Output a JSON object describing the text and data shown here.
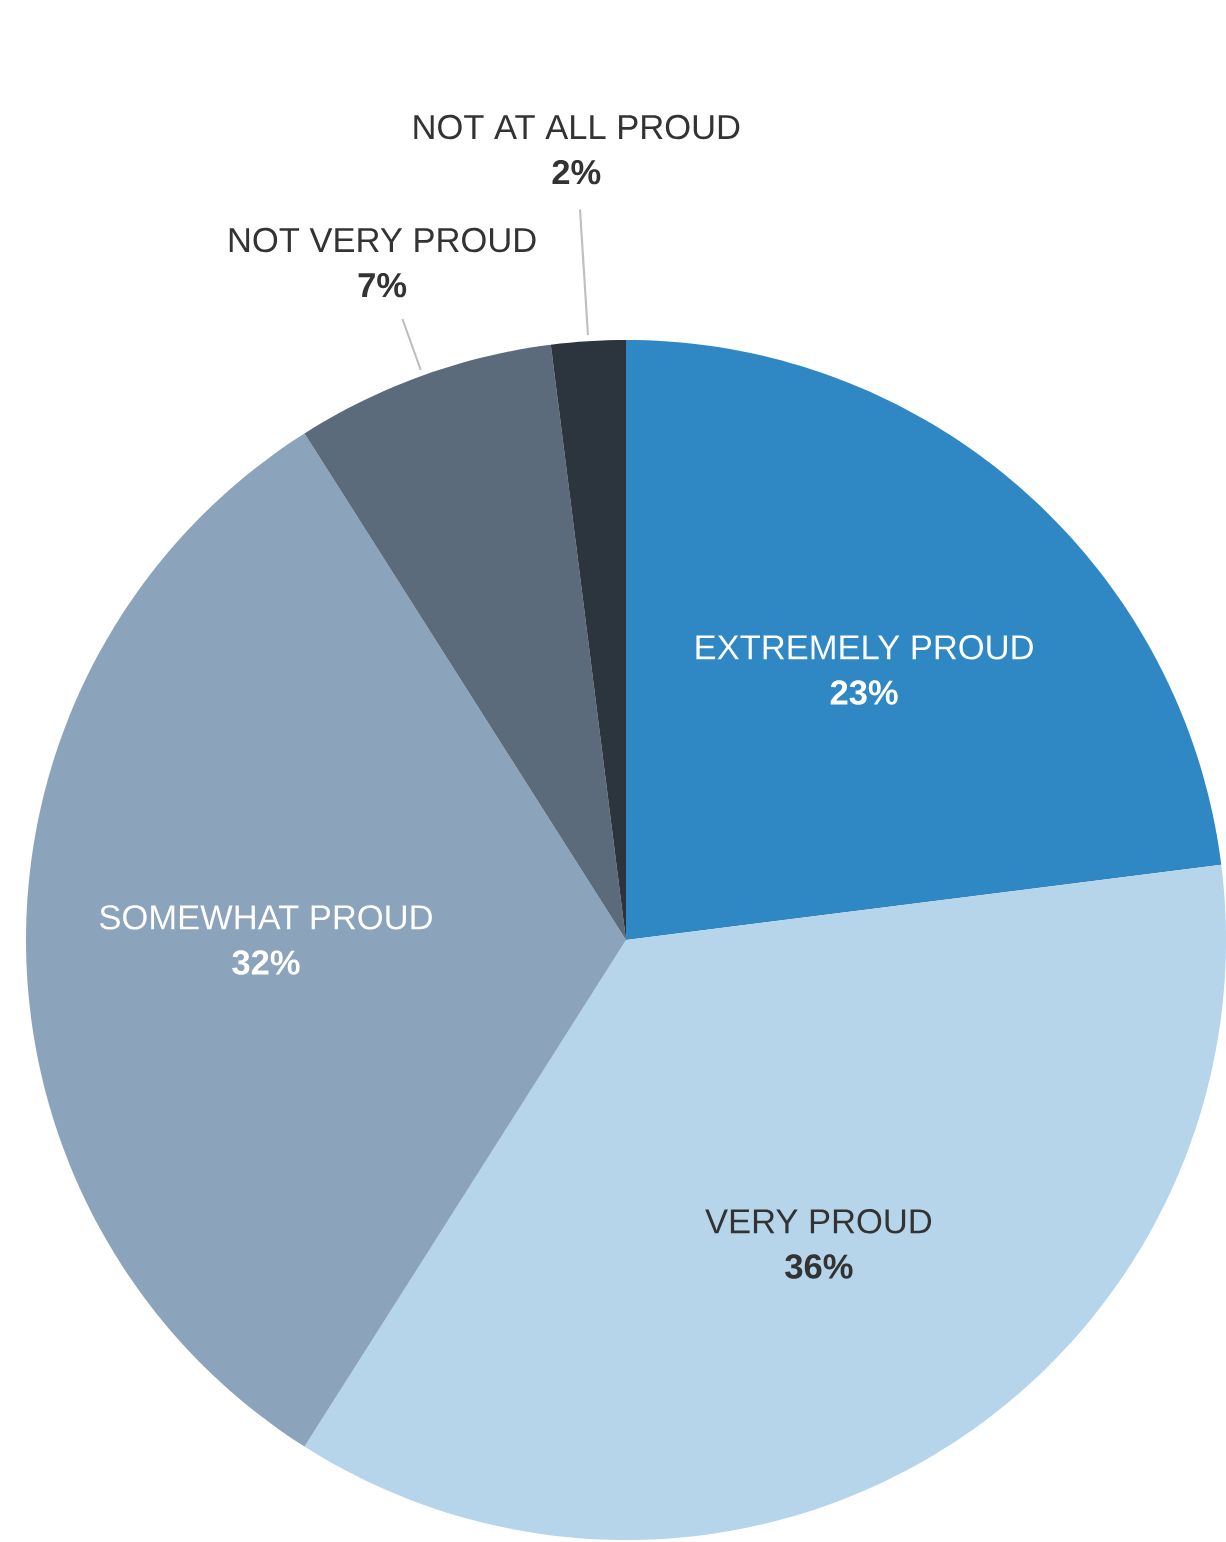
{
  "chart_data": {
    "type": "pie",
    "categories": [
      "EXTREMELY PROUD",
      "VERY PROUD",
      "SOMEWHAT PROUD",
      "NOT VERY PROUD",
      "NOT AT ALL PROUD"
    ],
    "values": [
      23,
      36,
      32,
      7,
      2
    ],
    "value_labels": [
      "23%",
      "36%",
      "32%",
      "7%",
      "2%"
    ],
    "colors": [
      "#2f87c3",
      "#b6d4ea",
      "#8ba3bb",
      "#5b6b7c",
      "#2c343d"
    ]
  }
}
